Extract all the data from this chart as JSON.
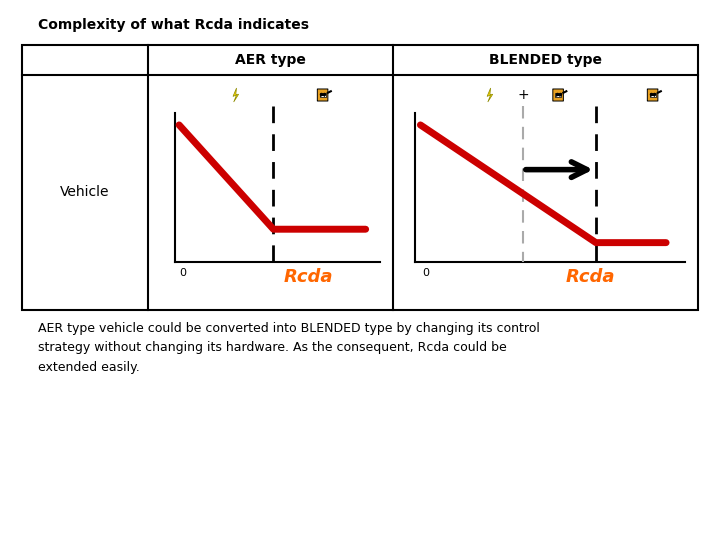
{
  "title": "Complexity of what Rcda indicates",
  "col1_header": "AER type",
  "col2_header": "BLENDED type",
  "row_label": "Vehicle",
  "x_label": "Rcda",
  "zero_label": "0",
  "footer_text": "AER type vehicle could be converted into BLENDED type by changing its control\nstrategy without changing its hardware. As the consequent, Rcda could be\nextended easily.",
  "bg_color": "#ffffff",
  "table_border_color": "#000000",
  "red_line_color": "#cc0000",
  "dashed_line_color": "#000000",
  "gray_dashed_color": "#aaaaaa",
  "arrow_color": "#000000",
  "rcda_color": "#ff6600",
  "title_fontsize": 10,
  "header_fontsize": 10,
  "row_label_fontsize": 10,
  "rcda_fontsize": 13,
  "footer_fontsize": 9,
  "zero_fontsize": 8
}
